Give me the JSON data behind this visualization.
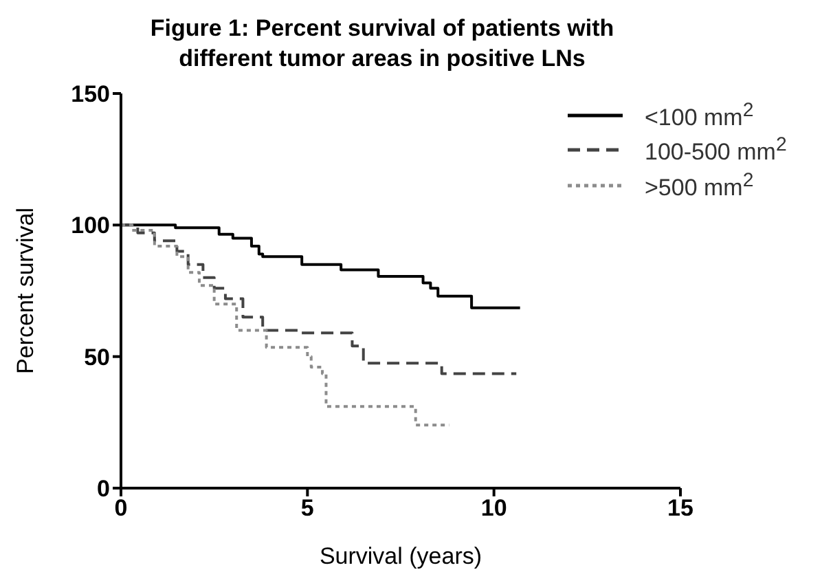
{
  "chart_data": {
    "type": "step",
    "title": "Figure 1: Percent survival of patients with different tumor areas in positive LNs",
    "xlabel": "Survival (years)",
    "ylabel": "Percent survival",
    "xlim": [
      0,
      15
    ],
    "xticks": [
      0,
      5,
      10,
      15
    ],
    "ylim": [
      0,
      150
    ],
    "yticks": [
      0,
      50,
      100,
      150
    ],
    "grid": false,
    "legend": "top right",
    "marker": "none",
    "series": [
      {
        "name": "<100 mm$^{2}$",
        "color": "#000000",
        "line_style": "solid",
        "x": [
          0,
          1.46,
          2.63,
          3.0,
          3.5,
          3.7,
          3.8,
          4.85,
          5.9,
          6.9,
          8.1,
          8.3,
          8.5,
          9.4,
          10.7
        ],
        "values": [
          100,
          99,
          96.5,
          95,
          92,
          89,
          88,
          85,
          83,
          80.5,
          78,
          76,
          73,
          68.5,
          68.5
        ]
      },
      {
        "name": "100-500 mm$^{2}$",
        "color": "#444444",
        "line_style": "dashed",
        "x": [
          0,
          0.45,
          0.9,
          1.5,
          1.8,
          2.2,
          2.5,
          2.8,
          3.27,
          3.8,
          4.8,
          6.2,
          6.5,
          8.6,
          10.6
        ],
        "values": [
          100,
          97,
          94,
          90,
          85,
          80,
          76,
          72,
          65,
          60,
          59,
          54,
          47.5,
          43.5,
          43.5
        ]
      },
      {
        "name": ">500 mm$^{2}$",
        "color": "#8c8c8c",
        "line_style": "dotted",
        "x": [
          0,
          0.3,
          0.9,
          1.5,
          1.8,
          2.1,
          2.5,
          3.1,
          3.9,
          5.0,
          5.1,
          5.4,
          5.5,
          7.9,
          8.8
        ],
        "values": [
          100,
          98,
          92,
          88,
          82,
          77,
          70,
          60,
          53.5,
          50,
          46,
          43.5,
          31,
          24,
          24
        ]
      }
    ]
  }
}
